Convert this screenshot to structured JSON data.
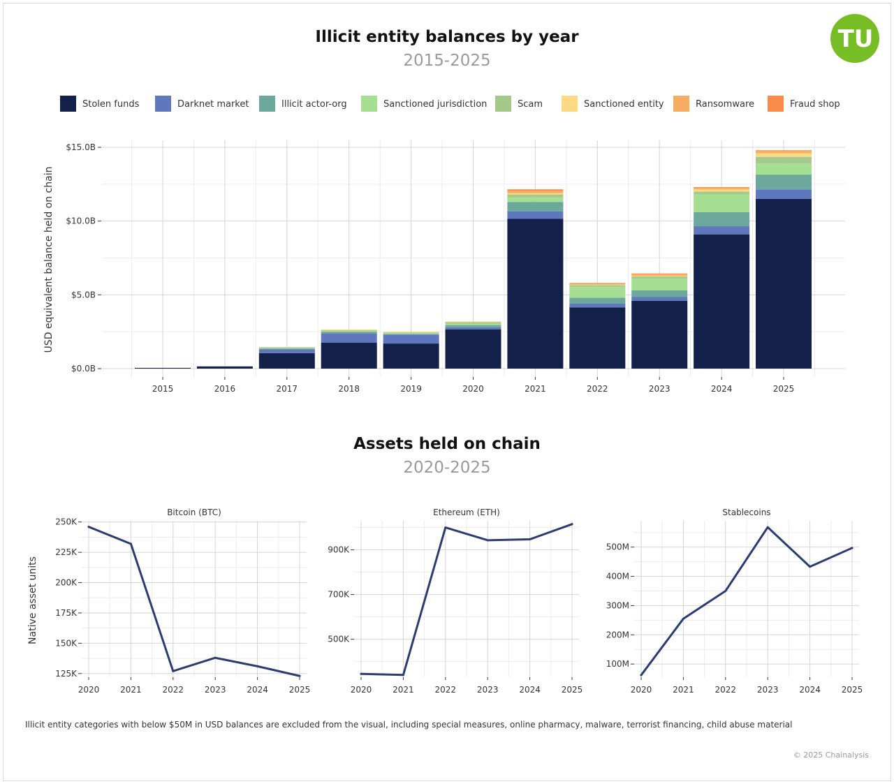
{
  "top": {
    "title": "Illicit entity balances by year",
    "subtitle": "2015-2025"
  },
  "bottom": {
    "title": "Assets held on chain",
    "subtitle": "2020-2025"
  },
  "footnote": "Illicit entity categories with below $50M in USD balances are excluded from the visual, including special measures, online pharmacy, malware, terrorist financing, child abuse material",
  "copyright": "© 2025 Chainalysis",
  "logo": {
    "text": "TU",
    "color": "#77bd25",
    "icon": "tu-logo"
  },
  "chart_data": [
    {
      "type": "bar",
      "stacked": true,
      "title": "Illicit entity balances by year",
      "subtitle": "2015-2025",
      "ylabel": "USD equivalent balance held on chain",
      "xlabel": "",
      "ylim": [
        0,
        15
      ],
      "y_unit": "billion USD",
      "y_ticks": [
        0,
        5,
        10,
        15
      ],
      "y_tick_labels": [
        "$0.0B",
        "$5.0B",
        "$10.0B",
        "$15.0B"
      ],
      "grid": true,
      "legend_position": "top",
      "categories": [
        "2015",
        "2016",
        "2017",
        "2018",
        "2019",
        "2020",
        "2021",
        "2022",
        "2023",
        "2024",
        "2025"
      ],
      "series": [
        {
          "name": "Stolen funds",
          "color": "#13204a",
          "values": [
            0.05,
            0.15,
            1.05,
            1.75,
            1.7,
            2.65,
            10.15,
            4.15,
            4.6,
            9.1,
            11.5
          ]
        },
        {
          "name": "Darknet market",
          "color": "#5f77bd",
          "values": [
            0.0,
            0.0,
            0.25,
            0.65,
            0.6,
            0.15,
            0.5,
            0.25,
            0.25,
            0.55,
            0.65
          ]
        },
        {
          "name": "Illicit actor-org",
          "color": "#6ca89c",
          "values": [
            0.0,
            0.0,
            0.05,
            0.1,
            0.05,
            0.15,
            0.65,
            0.4,
            0.45,
            0.95,
            1.0
          ]
        },
        {
          "name": "Sanctioned jurisdiction",
          "color": "#a6de92",
          "values": [
            0.0,
            0.0,
            0.05,
            0.05,
            0.05,
            0.1,
            0.3,
            0.75,
            0.8,
            1.2,
            0.75
          ]
        },
        {
          "name": "Scam",
          "color": "#a4c98a",
          "values": [
            0.0,
            0.0,
            0.05,
            0.05,
            0.05,
            0.1,
            0.2,
            0.1,
            0.15,
            0.2,
            0.45
          ]
        },
        {
          "name": "Sanctioned entity",
          "color": "#fcd982",
          "values": [
            0.0,
            0.0,
            0.0,
            0.05,
            0.05,
            0.05,
            0.1,
            0.05,
            0.05,
            0.15,
            0.25
          ]
        },
        {
          "name": "Ransomware",
          "color": "#f6ad62",
          "values": [
            0.0,
            0.0,
            0.0,
            0.0,
            0.0,
            0.0,
            0.15,
            0.05,
            0.1,
            0.1,
            0.15
          ]
        },
        {
          "name": "Fraud shop",
          "color": "#fa8a4a",
          "values": [
            0.0,
            0.0,
            0.0,
            0.0,
            0.0,
            0.0,
            0.1,
            0.05,
            0.05,
            0.05,
            0.05
          ]
        }
      ]
    },
    {
      "type": "line",
      "title": "Bitcoin (BTC)",
      "ylabel": "Native asset units",
      "x": [
        2020,
        2021,
        2022,
        2023,
        2024,
        2025
      ],
      "values": [
        246000,
        232000,
        127000,
        138000,
        131000,
        123000
      ],
      "ylim": [
        122000,
        251000
      ],
      "y_ticks": [
        125000,
        150000,
        175000,
        200000,
        225000,
        250000
      ],
      "y_tick_labels": [
        "125K",
        "150K",
        "175K",
        "200K",
        "225K",
        "250K"
      ],
      "color": "#2b3c71",
      "grid": true
    },
    {
      "type": "line",
      "title": "Ethereum (ETH)",
      "ylabel": "",
      "x": [
        2020,
        2021,
        2022,
        2023,
        2024,
        2025
      ],
      "values": [
        345000,
        340000,
        1000000,
        943000,
        947000,
        1015000
      ],
      "ylim": [
        330000,
        1030000
      ],
      "y_ticks": [
        500000,
        700000,
        900000
      ],
      "y_tick_labels": [
        "500K",
        "700K",
        "900K"
      ],
      "color": "#2b3c71",
      "grid": true
    },
    {
      "type": "line",
      "title": "Stablecoins",
      "ylabel": "",
      "x": [
        2020,
        2021,
        2022,
        2023,
        2024,
        2025
      ],
      "values": [
        62000000,
        255000000,
        350000000,
        568000000,
        433000000,
        497000000
      ],
      "ylim": [
        55000000,
        590000000
      ],
      "y_ticks": [
        100000000,
        200000000,
        300000000,
        400000000,
        500000000
      ],
      "y_tick_labels": [
        "100M",
        "200M",
        "300M",
        "400M",
        "500M"
      ],
      "color": "#2b3c71",
      "grid": true
    }
  ]
}
